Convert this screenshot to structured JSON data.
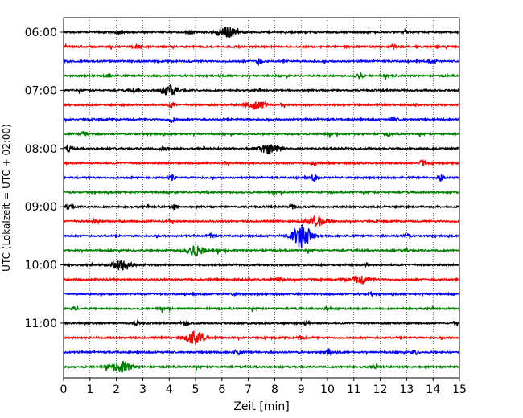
{
  "chart_data": {
    "type": "line",
    "title": "",
    "xlabel": "Zeit  [min]",
    "ylabel": "UTC (Lokalzeit = UTC + 02:00)",
    "xlim": [
      0,
      15
    ],
    "x_ticks": [
      "0",
      "1",
      "2",
      "3",
      "4",
      "5",
      "6",
      "7",
      "8",
      "9",
      "10",
      "11",
      "12",
      "13",
      "14",
      "15"
    ],
    "y_ticks": [
      "06:00",
      "07:00",
      "08:00",
      "09:00",
      "10:00",
      "11:00"
    ],
    "row_interval_min": 15,
    "colors": [
      "#000000",
      "#ff0000",
      "#0000ff",
      "#008000"
    ],
    "grid": "vertical dotted lines at each minute",
    "traces": [
      {
        "start": "06:00",
        "color": "#000000",
        "events": [
          {
            "t": 6.2,
            "amp": 1.0
          },
          {
            "t": 2.1,
            "amp": 0.4
          },
          {
            "t": 4.8,
            "amp": 0.3
          }
        ]
      },
      {
        "start": "06:15",
        "color": "#ff0000",
        "events": [
          {
            "t": 2.8,
            "amp": 0.3
          },
          {
            "t": 12.5,
            "amp": 0.4
          }
        ]
      },
      {
        "start": "06:30",
        "color": "#0000ff",
        "events": [
          {
            "t": 7.4,
            "amp": 0.5
          },
          {
            "t": 14.0,
            "amp": 0.4
          }
        ]
      },
      {
        "start": "06:45",
        "color": "#008000",
        "events": [
          {
            "t": 1.7,
            "amp": 0.3
          },
          {
            "t": 11.2,
            "amp": 0.6
          }
        ]
      },
      {
        "start": "07:00",
        "color": "#000000",
        "events": [
          {
            "t": 4.0,
            "amp": 0.9
          },
          {
            "t": 2.7,
            "amp": 0.4
          }
        ]
      },
      {
        "start": "07:15",
        "color": "#ff0000",
        "events": [
          {
            "t": 7.3,
            "amp": 0.8
          },
          {
            "t": 4.1,
            "amp": 0.4
          }
        ]
      },
      {
        "start": "07:30",
        "color": "#0000ff",
        "events": [
          {
            "t": 12.5,
            "amp": 0.5
          },
          {
            "t": 4.1,
            "amp": 0.5
          }
        ]
      },
      {
        "start": "07:45",
        "color": "#008000",
        "events": [
          {
            "t": 0.8,
            "amp": 0.6
          },
          {
            "t": 12.3,
            "amp": 0.3
          }
        ]
      },
      {
        "start": "08:00",
        "color": "#000000",
        "events": [
          {
            "t": 7.8,
            "amp": 1.0
          },
          {
            "t": 0.2,
            "amp": 0.5
          },
          {
            "t": 3.8,
            "amp": 0.4
          }
        ]
      },
      {
        "start": "08:15",
        "color": "#ff0000",
        "events": [
          {
            "t": 13.6,
            "amp": 0.5
          },
          {
            "t": 9.5,
            "amp": 0.3
          }
        ]
      },
      {
        "start": "08:30",
        "color": "#0000ff",
        "events": [
          {
            "t": 14.3,
            "amp": 0.6
          },
          {
            "t": 4.1,
            "amp": 0.5
          },
          {
            "t": 9.5,
            "amp": 0.6
          }
        ]
      },
      {
        "start": "08:45",
        "color": "#008000",
        "events": [
          {
            "t": 5.5,
            "amp": 0.2
          }
        ]
      },
      {
        "start": "09:00",
        "color": "#000000",
        "events": [
          {
            "t": 0.2,
            "amp": 0.6
          },
          {
            "t": 4.2,
            "amp": 0.5
          },
          {
            "t": 8.7,
            "amp": 0.4
          }
        ]
      },
      {
        "start": "09:15",
        "color": "#ff0000",
        "events": [
          {
            "t": 1.2,
            "amp": 0.5
          },
          {
            "t": 9.6,
            "amp": 0.9
          }
        ]
      },
      {
        "start": "09:30",
        "color": "#0000ff",
        "events": [
          {
            "t": 9.0,
            "amp": 2.3
          },
          {
            "t": 5.6,
            "amp": 0.5
          },
          {
            "t": 13.0,
            "amp": 0.4
          }
        ]
      },
      {
        "start": "09:45",
        "color": "#008000",
        "events": [
          {
            "t": 5.0,
            "amp": 1.0
          },
          {
            "t": 13.0,
            "amp": 0.3
          }
        ]
      },
      {
        "start": "10:00",
        "color": "#000000",
        "events": [
          {
            "t": 2.2,
            "amp": 1.1
          },
          {
            "t": 11.5,
            "amp": 0.2
          }
        ]
      },
      {
        "start": "10:15",
        "color": "#ff0000",
        "events": [
          {
            "t": 11.2,
            "amp": 0.8
          },
          {
            "t": 8.2,
            "amp": 0.4
          }
        ]
      },
      {
        "start": "10:30",
        "color": "#0000ff",
        "events": [
          {
            "t": 6.5,
            "amp": 0.3
          },
          {
            "t": 11.6,
            "amp": 0.3
          }
        ]
      },
      {
        "start": "10:45",
        "color": "#008000",
        "events": [
          {
            "t": 0.4,
            "amp": 0.4
          },
          {
            "t": 10.0,
            "amp": 0.3
          }
        ]
      },
      {
        "start": "11:00",
        "color": "#000000",
        "events": [
          {
            "t": 2.8,
            "amp": 0.4
          },
          {
            "t": 4.6,
            "amp": 0.4
          },
          {
            "t": 9.2,
            "amp": 0.3
          }
        ]
      },
      {
        "start": "11:15",
        "color": "#ff0000",
        "events": [
          {
            "t": 5.0,
            "amp": 1.2
          },
          {
            "t": 9.0,
            "amp": 0.4
          }
        ]
      },
      {
        "start": "11:30",
        "color": "#0000ff",
        "events": [
          {
            "t": 10.0,
            "amp": 0.7
          },
          {
            "t": 13.3,
            "amp": 0.5
          },
          {
            "t": 6.6,
            "amp": 0.4
          }
        ]
      },
      {
        "start": "11:45",
        "color": "#008000",
        "events": [
          {
            "t": 2.2,
            "amp": 1.0
          },
          {
            "t": 11.8,
            "amp": 0.3
          }
        ]
      }
    ]
  }
}
